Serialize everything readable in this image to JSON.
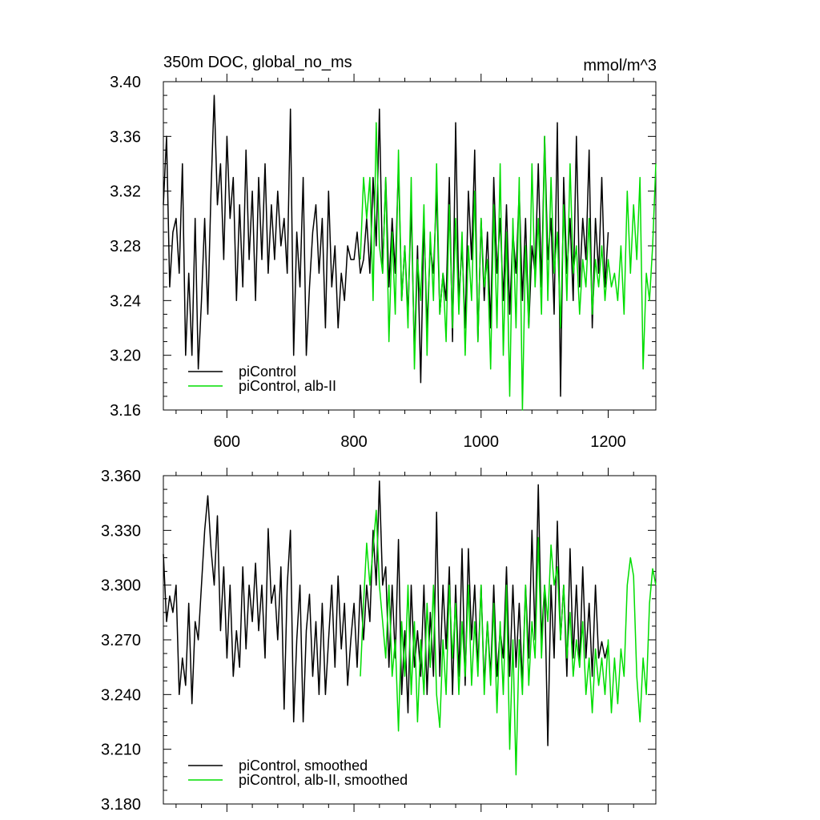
{
  "chart_data": [
    {
      "type": "line",
      "title": "350m DOC, global_no_ms",
      "units": "mmol/m^3",
      "xlim": [
        500,
        1275
      ],
      "ylim": [
        3.16,
        3.4
      ],
      "xticks": [
        600,
        800,
        1000,
        1200
      ],
      "xtick_labels": [
        "600",
        "800",
        "1000",
        "1200"
      ],
      "yticks": [
        3.16,
        3.2,
        3.24,
        3.28,
        3.32,
        3.36,
        3.4
      ],
      "ytick_labels": [
        "3.16",
        "3.20",
        "3.24",
        "3.28",
        "3.32",
        "3.36",
        "3.40"
      ],
      "legend_position": "bottom-left",
      "series": [
        {
          "name": "piControl",
          "color": "#000000",
          "x": [
            500,
            505,
            510,
            515,
            520,
            525,
            530,
            535,
            540,
            545,
            550,
            555,
            560,
            565,
            570,
            575,
            580,
            585,
            590,
            595,
            600,
            605,
            610,
            615,
            620,
            625,
            630,
            635,
            640,
            645,
            650,
            655,
            660,
            665,
            670,
            675,
            680,
            685,
            690,
            695,
            700,
            705,
            710,
            715,
            720,
            725,
            730,
            735,
            740,
            745,
            750,
            755,
            760,
            765,
            770,
            775,
            780,
            785,
            790,
            795,
            800,
            805,
            810,
            815,
            820,
            825,
            830,
            835,
            840,
            845,
            850,
            855,
            860,
            865,
            870,
            875,
            880,
            885,
            890,
            895,
            900,
            905,
            910,
            915,
            920,
            925,
            930,
            935,
            940,
            945,
            950,
            955,
            960,
            965,
            970,
            975,
            980,
            985,
            990,
            995,
            1000,
            1005,
            1010,
            1015,
            1020,
            1025,
            1030,
            1035,
            1040,
            1045,
            1050,
            1055,
            1060,
            1065,
            1070,
            1075,
            1080,
            1085,
            1090,
            1095,
            1100,
            1105,
            1110,
            1115,
            1120,
            1125,
            1130,
            1135,
            1140,
            1145,
            1150,
            1155,
            1160,
            1165,
            1170,
            1175,
            1180,
            1185,
            1190,
            1195,
            1200
          ],
          "y": [
            3.31,
            3.36,
            3.25,
            3.29,
            3.3,
            3.26,
            3.34,
            3.2,
            3.26,
            3.2,
            3.3,
            3.19,
            3.24,
            3.3,
            3.23,
            3.32,
            3.39,
            3.31,
            3.34,
            3.27,
            3.36,
            3.3,
            3.33,
            3.24,
            3.31,
            3.25,
            3.35,
            3.27,
            3.32,
            3.24,
            3.33,
            3.27,
            3.34,
            3.26,
            3.31,
            3.27,
            3.32,
            3.28,
            3.3,
            3.26,
            3.38,
            3.2,
            3.29,
            3.25,
            3.33,
            3.2,
            3.25,
            3.29,
            3.31,
            3.26,
            3.3,
            3.22,
            3.32,
            3.25,
            3.28,
            3.22,
            3.26,
            3.24,
            3.28,
            3.27,
            3.27,
            3.29,
            3.26,
            3.27,
            3.3,
            3.26,
            3.33,
            3.28,
            3.38,
            3.26,
            3.33,
            3.25,
            3.3,
            3.26,
            3.34,
            3.24,
            3.28,
            3.23,
            3.31,
            3.2,
            3.28,
            3.18,
            3.3,
            3.22,
            3.28,
            3.26,
            3.32,
            3.23,
            3.26,
            3.24,
            3.33,
            3.21,
            3.37,
            3.24,
            3.28,
            3.22,
            3.32,
            3.27,
            3.35,
            3.21,
            3.3,
            3.24,
            3.29,
            3.22,
            3.33,
            3.26,
            3.3,
            3.24,
            3.31,
            3.23,
            3.29,
            3.26,
            3.32,
            3.24,
            3.3,
            3.22,
            3.28,
            3.26,
            3.34,
            3.25,
            3.36,
            3.27,
            3.3,
            3.23,
            3.37,
            3.17,
            3.33,
            3.26,
            3.3,
            3.24,
            3.36,
            3.25,
            3.3,
            3.27,
            3.35,
            3.22,
            3.3,
            3.26,
            3.33,
            3.25,
            3.29
          ]
        },
        {
          "name": "piControl, alb-II",
          "color": "#00dd00",
          "x": [
            810,
            815,
            820,
            825,
            830,
            835,
            840,
            845,
            850,
            855,
            860,
            865,
            870,
            875,
            880,
            885,
            890,
            895,
            900,
            905,
            910,
            915,
            920,
            925,
            930,
            935,
            940,
            945,
            950,
            955,
            960,
            965,
            970,
            975,
            980,
            985,
            990,
            995,
            1000,
            1005,
            1010,
            1015,
            1020,
            1025,
            1030,
            1035,
            1040,
            1045,
            1050,
            1055,
            1060,
            1065,
            1070,
            1075,
            1080,
            1085,
            1090,
            1095,
            1100,
            1105,
            1110,
            1115,
            1120,
            1125,
            1130,
            1135,
            1140,
            1145,
            1150,
            1155,
            1160,
            1165,
            1170,
            1175,
            1180,
            1185,
            1190,
            1195,
            1200,
            1205,
            1210,
            1215,
            1220,
            1225,
            1230,
            1235,
            1240,
            1245,
            1250,
            1255,
            1260,
            1265,
            1270,
            1275
          ],
          "y": [
            3.27,
            3.33,
            3.3,
            3.33,
            3.24,
            3.37,
            3.28,
            3.26,
            3.33,
            3.21,
            3.29,
            3.23,
            3.35,
            3.24,
            3.28,
            3.22,
            3.33,
            3.19,
            3.27,
            3.24,
            3.31,
            3.2,
            3.29,
            3.24,
            3.34,
            3.23,
            3.26,
            3.21,
            3.31,
            3.22,
            3.3,
            3.23,
            3.29,
            3.2,
            3.28,
            3.24,
            3.32,
            3.21,
            3.3,
            3.25,
            3.27,
            3.19,
            3.31,
            3.22,
            3.34,
            3.2,
            3.29,
            3.17,
            3.3,
            3.22,
            3.33,
            3.16,
            3.28,
            3.22,
            3.34,
            3.25,
            3.3,
            3.23,
            3.36,
            3.24,
            3.33,
            3.26,
            3.29,
            3.22,
            3.31,
            3.24,
            3.34,
            3.26,
            3.28,
            3.23,
            3.27,
            3.25,
            3.3,
            3.23,
            3.27,
            3.25,
            3.28,
            3.24,
            3.27,
            3.25,
            3.26,
            3.24,
            3.28,
            3.23,
            3.32,
            3.26,
            3.31,
            3.27,
            3.33,
            3.19,
            3.26,
            3.24,
            3.28,
            3.34
          ]
        }
      ]
    },
    {
      "type": "line",
      "xlim": [
        500,
        1275
      ],
      "ylim": [
        3.18,
        3.36
      ],
      "xticks": [
        600,
        800,
        1000,
        1200
      ],
      "yticks": [
        3.18,
        3.21,
        3.24,
        3.27,
        3.3,
        3.33,
        3.36
      ],
      "ytick_labels": [
        "3.180",
        "3.210",
        "3.240",
        "3.270",
        "3.300",
        "3.330",
        "3.360"
      ],
      "legend_position": "bottom-left",
      "series": [
        {
          "name": "piControl, smoothed",
          "color": "#000000",
          "x": [
            500,
            505,
            510,
            515,
            520,
            525,
            530,
            535,
            540,
            545,
            550,
            555,
            560,
            565,
            570,
            575,
            580,
            585,
            590,
            595,
            600,
            605,
            610,
            615,
            620,
            625,
            630,
            635,
            640,
            645,
            650,
            655,
            660,
            665,
            670,
            675,
            680,
            685,
            690,
            695,
            700,
            705,
            710,
            715,
            720,
            725,
            730,
            735,
            740,
            745,
            750,
            755,
            760,
            765,
            770,
            775,
            780,
            785,
            790,
            795,
            800,
            805,
            810,
            815,
            820,
            825,
            830,
            835,
            840,
            845,
            850,
            855,
            860,
            865,
            870,
            875,
            880,
            885,
            890,
            895,
            900,
            905,
            910,
            915,
            920,
            925,
            930,
            935,
            940,
            945,
            950,
            955,
            960,
            965,
            970,
            975,
            980,
            985,
            990,
            995,
            1000,
            1005,
            1010,
            1015,
            1020,
            1025,
            1030,
            1035,
            1040,
            1045,
            1050,
            1055,
            1060,
            1065,
            1070,
            1075,
            1080,
            1085,
            1090,
            1095,
            1100,
            1105,
            1110,
            1115,
            1120,
            1125,
            1130,
            1135,
            1140,
            1145,
            1150,
            1155,
            1160,
            1165,
            1170,
            1175,
            1180,
            1185,
            1190,
            1195,
            1200
          ],
          "y": [
            3.317,
            3.28,
            3.294,
            3.285,
            3.3,
            3.24,
            3.26,
            3.245,
            3.29,
            3.235,
            3.28,
            3.27,
            3.3,
            3.33,
            3.349,
            3.32,
            3.3,
            3.338,
            3.275,
            3.31,
            3.26,
            3.3,
            3.25,
            3.275,
            3.255,
            3.31,
            3.265,
            3.3,
            3.28,
            3.312,
            3.275,
            3.3,
            3.26,
            3.331,
            3.29,
            3.3,
            3.27,
            3.31,
            3.232,
            3.3,
            3.33,
            3.225,
            3.27,
            3.3,
            3.225,
            3.275,
            3.295,
            3.25,
            3.28,
            3.24,
            3.29,
            3.24,
            3.27,
            3.3,
            3.255,
            3.305,
            3.265,
            3.29,
            3.245,
            3.27,
            3.29,
            3.255,
            3.3,
            3.27,
            3.3,
            3.28,
            3.33,
            3.3,
            3.357,
            3.3,
            3.31,
            3.255,
            3.3,
            3.26,
            3.325,
            3.24,
            3.275,
            3.23,
            3.3,
            3.255,
            3.275,
            3.25,
            3.3,
            3.24,
            3.285,
            3.25,
            3.34,
            3.25,
            3.3,
            3.265,
            3.31,
            3.24,
            3.3,
            3.25,
            3.32,
            3.245,
            3.32,
            3.27,
            3.3,
            3.255,
            3.3,
            3.245,
            3.28,
            3.25,
            3.3,
            3.25,
            3.275,
            3.26,
            3.31,
            3.25,
            3.3,
            3.255,
            3.29,
            3.245,
            3.3,
            3.26,
            3.33,
            3.27,
            3.355,
            3.27,
            3.3,
            3.212,
            3.3,
            3.26,
            3.335,
            3.27,
            3.3,
            3.25,
            3.32,
            3.26,
            3.3,
            3.255,
            3.31,
            3.26,
            3.29,
            3.25,
            3.3,
            3.26,
            3.269,
            3.26,
            3.268
          ]
        },
        {
          "name": "piControl, alb-II, smoothed",
          "color": "#00dd00",
          "x": [
            810,
            815,
            820,
            825,
            830,
            835,
            840,
            845,
            850,
            855,
            860,
            865,
            870,
            875,
            880,
            885,
            890,
            895,
            900,
            905,
            910,
            915,
            920,
            925,
            930,
            935,
            940,
            945,
            950,
            955,
            960,
            965,
            970,
            975,
            980,
            985,
            990,
            995,
            1000,
            1005,
            1010,
            1015,
            1020,
            1025,
            1030,
            1035,
            1040,
            1045,
            1050,
            1055,
            1060,
            1065,
            1070,
            1075,
            1080,
            1085,
            1090,
            1095,
            1100,
            1105,
            1110,
            1115,
            1120,
            1125,
            1130,
            1135,
            1140,
            1145,
            1150,
            1155,
            1160,
            1165,
            1170,
            1175,
            1180,
            1185,
            1190,
            1195,
            1200,
            1205,
            1210,
            1215,
            1220,
            1225,
            1230,
            1235,
            1240,
            1245,
            1250,
            1255,
            1260,
            1265,
            1270,
            1275
          ],
          "y": [
            3.25,
            3.29,
            3.323,
            3.3,
            3.32,
            3.341,
            3.3,
            3.28,
            3.26,
            3.3,
            3.25,
            3.27,
            3.22,
            3.28,
            3.25,
            3.3,
            3.24,
            3.28,
            3.225,
            3.27,
            3.24,
            3.29,
            3.255,
            3.3,
            3.24,
            3.222,
            3.27,
            3.24,
            3.3,
            3.26,
            3.29,
            3.24,
            3.28,
            3.25,
            3.3,
            3.245,
            3.28,
            3.25,
            3.3,
            3.24,
            3.28,
            3.245,
            3.29,
            3.23,
            3.28,
            3.24,
            3.3,
            3.21,
            3.27,
            3.196,
            3.27,
            3.24,
            3.3,
            3.245,
            3.28,
            3.26,
            3.326,
            3.26,
            3.3,
            3.28,
            3.322,
            3.3,
            3.31,
            3.27,
            3.3,
            3.26,
            3.285,
            3.25,
            3.27,
            3.255,
            3.28,
            3.24,
            3.26,
            3.23,
            3.265,
            3.245,
            3.26,
            3.24,
            3.27,
            3.23,
            3.26,
            3.235,
            3.265,
            3.25,
            3.3,
            3.315,
            3.305,
            3.25,
            3.225,
            3.26,
            3.24,
            3.29,
            3.309,
            3.3
          ]
        }
      ]
    }
  ]
}
